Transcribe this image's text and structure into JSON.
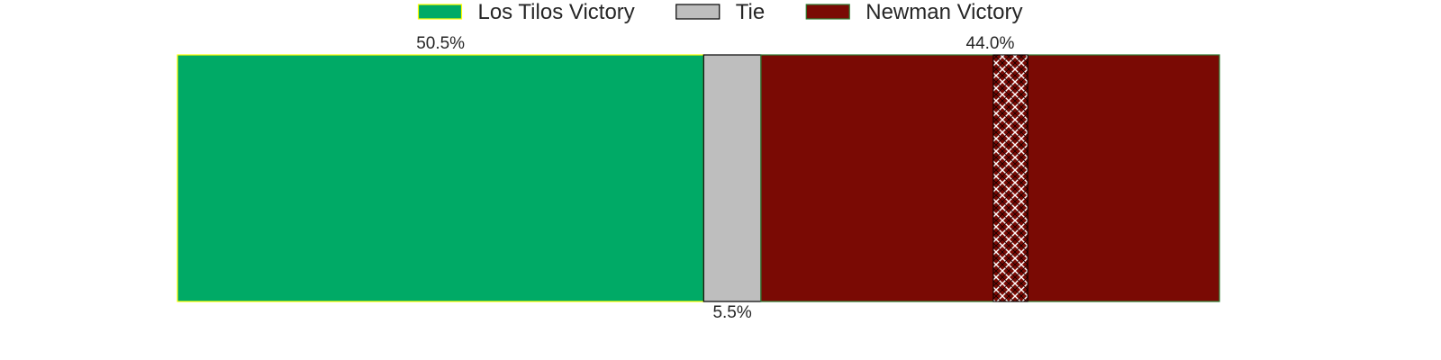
{
  "chart_data": {
    "type": "bar",
    "orientation": "horizontal-stacked",
    "segments": [
      {
        "name": "Los Tilos Victory",
        "value": 50.5,
        "label": "50.5%",
        "color": "#00aa66",
        "edge_color": "#ffff00",
        "label_position": "above"
      },
      {
        "name": "Tie",
        "value": 5.5,
        "label": "5.5%",
        "color": "#bebebe",
        "edge_color": "#000000",
        "label_position": "below"
      },
      {
        "name": "Newman Victory",
        "value": 44.0,
        "label": "44.0%",
        "color": "#7a0a04",
        "edge_color": "#2e7d32",
        "label_position": "above"
      }
    ],
    "xlim": [
      0,
      100
    ],
    "grid": false,
    "legend_placement": "top-center",
    "hatched_region": {
      "segment": "Newman Victory",
      "from": 78.3,
      "to": 81.6
    }
  }
}
